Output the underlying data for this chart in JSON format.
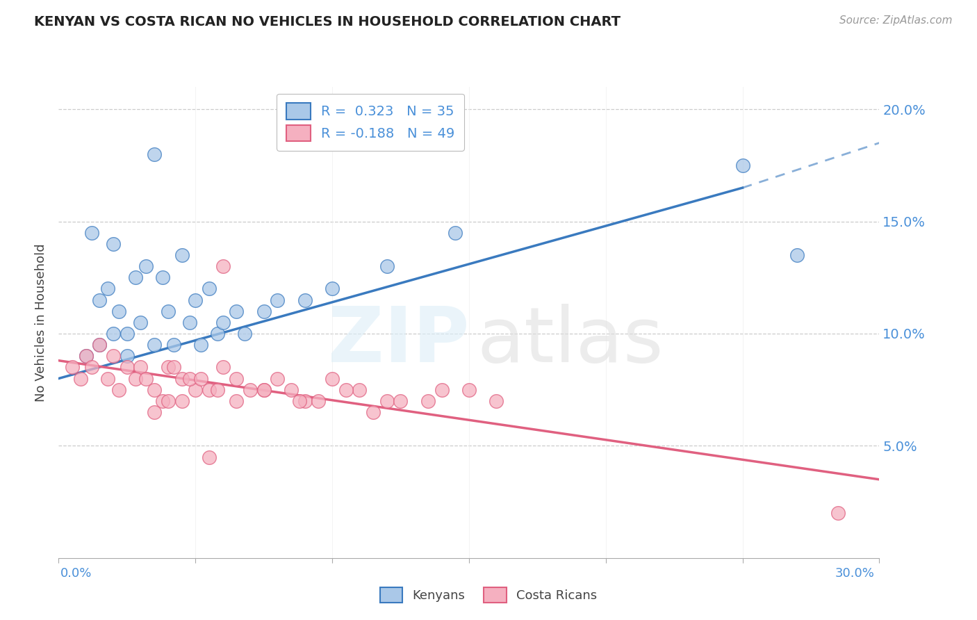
{
  "title": "KENYAN VS COSTA RICAN NO VEHICLES IN HOUSEHOLD CORRELATION CHART",
  "source": "Source: ZipAtlas.com",
  "ylabel": "No Vehicles in Household",
  "xmin": 0.0,
  "xmax": 30.0,
  "ymin": 0.0,
  "ymax": 21.0,
  "kenyan_color": "#aac8e8",
  "costarican_color": "#f5b0c0",
  "kenyan_line_color": "#3a7abf",
  "costarican_line_color": "#e06080",
  "background_color": "#ffffff",
  "kenyan_x": [
    1.5,
    2.0,
    3.5,
    1.2,
    2.8,
    3.2,
    1.8,
    2.2,
    4.5,
    3.8,
    5.5,
    5.0,
    4.0,
    3.0,
    2.5,
    1.5,
    2.0,
    1.0,
    2.5,
    3.5,
    4.8,
    6.5,
    8.0,
    7.5,
    5.8,
    4.2,
    6.0,
    9.0,
    10.0,
    12.0,
    5.2,
    14.5,
    6.8,
    25.0,
    27.0
  ],
  "kenyan_y": [
    11.5,
    14.0,
    18.0,
    14.5,
    12.5,
    13.0,
    12.0,
    11.0,
    13.5,
    12.5,
    12.0,
    11.5,
    11.0,
    10.5,
    10.0,
    9.5,
    10.0,
    9.0,
    9.0,
    9.5,
    10.5,
    11.0,
    11.5,
    11.0,
    10.0,
    9.5,
    10.5,
    11.5,
    12.0,
    13.0,
    9.5,
    14.5,
    10.0,
    17.5,
    13.5
  ],
  "costarican_x": [
    0.5,
    1.0,
    0.8,
    1.5,
    1.2,
    2.0,
    1.8,
    2.5,
    2.2,
    3.0,
    2.8,
    3.5,
    3.2,
    4.0,
    3.8,
    4.5,
    4.2,
    5.0,
    4.8,
    5.5,
    5.2,
    6.0,
    5.8,
    6.5,
    7.0,
    8.0,
    7.5,
    9.0,
    8.5,
    10.0,
    12.0,
    14.0,
    6.0,
    11.0,
    4.5,
    13.5,
    6.5,
    7.5,
    8.8,
    10.5,
    12.5,
    15.0,
    5.5,
    16.0,
    3.5,
    4.0,
    9.5,
    28.5,
    11.5
  ],
  "costarican_y": [
    8.5,
    9.0,
    8.0,
    9.5,
    8.5,
    9.0,
    8.0,
    8.5,
    7.5,
    8.5,
    8.0,
    7.5,
    8.0,
    8.5,
    7.0,
    8.0,
    8.5,
    7.5,
    8.0,
    7.5,
    8.0,
    8.5,
    7.5,
    8.0,
    7.5,
    8.0,
    7.5,
    7.0,
    7.5,
    8.0,
    7.0,
    7.5,
    13.0,
    7.5,
    7.0,
    7.0,
    7.0,
    7.5,
    7.0,
    7.5,
    7.0,
    7.5,
    4.5,
    7.0,
    6.5,
    7.0,
    7.0,
    2.0,
    6.5
  ],
  "kenyan_trend": [
    0.0,
    25.0,
    8.0,
    16.5
  ],
  "kenyan_dash": [
    25.0,
    30.0,
    16.5,
    18.5
  ],
  "costarican_trend": [
    0.0,
    30.0,
    8.8,
    3.5
  ]
}
